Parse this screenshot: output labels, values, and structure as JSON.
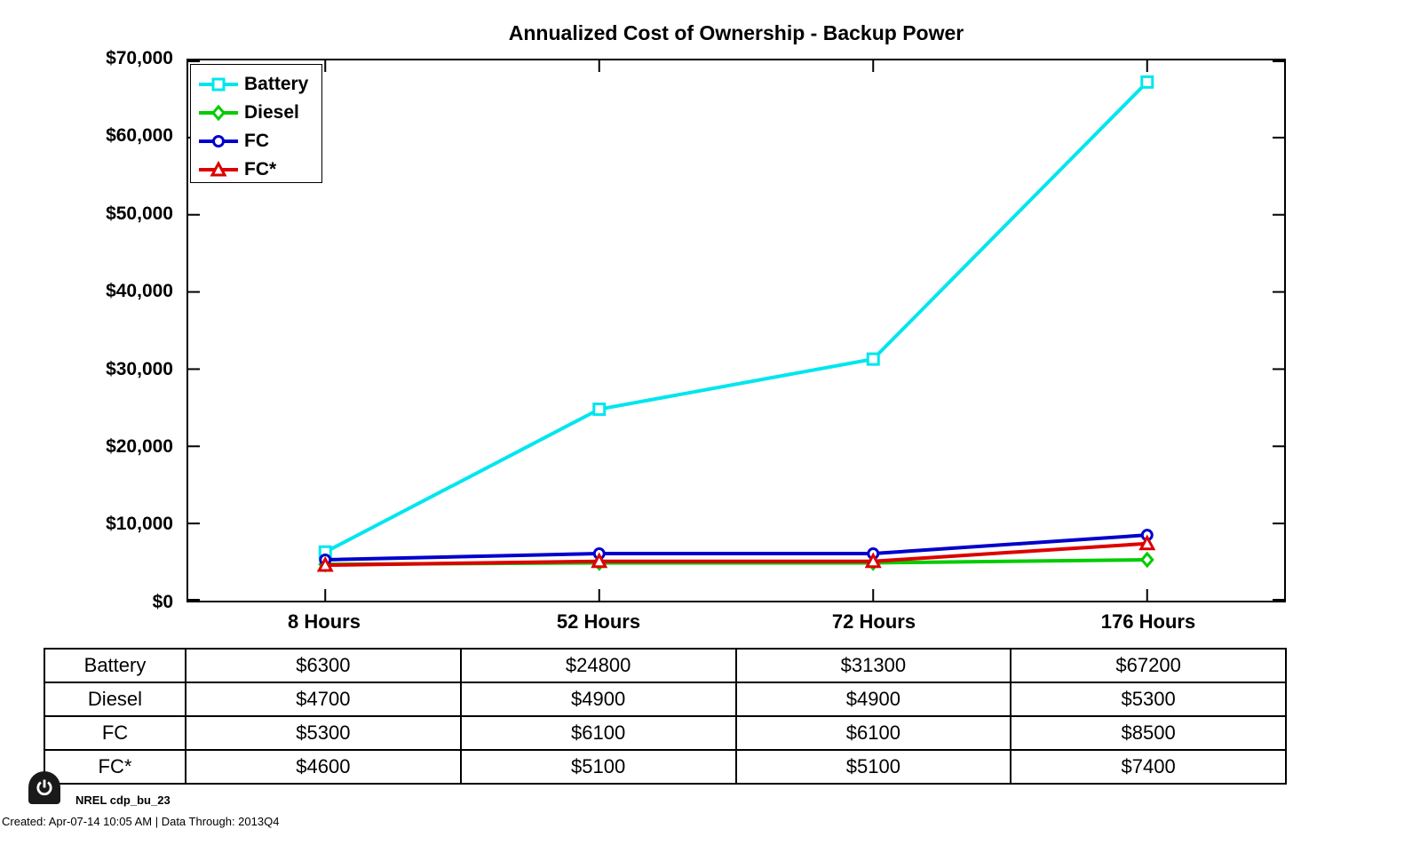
{
  "title": "Annualized Cost of Ownership - Backup Power",
  "chart_data": {
    "type": "line",
    "title": "Annualized Cost of Ownership - Backup Power",
    "categories": [
      "8 Hours",
      "52 Hours",
      "72 Hours",
      "176 Hours"
    ],
    "series": [
      {
        "name": "Battery",
        "color": "#00E6EE",
        "marker": "square",
        "values": [
          6300,
          24800,
          31300,
          67200
        ]
      },
      {
        "name": "Diesel",
        "color": "#00CC00",
        "marker": "diamond",
        "values": [
          4700,
          4900,
          4900,
          5300
        ]
      },
      {
        "name": "FC",
        "color": "#0000CC",
        "marker": "circle",
        "values": [
          5300,
          6100,
          6100,
          8500
        ]
      },
      {
        "name": "FC*",
        "color": "#DD0000",
        "marker": "triangle",
        "values": [
          4600,
          5100,
          5100,
          7400
        ]
      }
    ],
    "xlabel": "",
    "ylabel": "",
    "ylim": [
      0,
      70000
    ],
    "ytick_values": [
      0,
      10000,
      20000,
      30000,
      40000,
      50000,
      60000,
      70000
    ],
    "ytick_labels": [
      "$0",
      "$10,000",
      "$20,000",
      "$30,000",
      "$40,000",
      "$50,000",
      "$60,000",
      "$70,000"
    ],
    "grid": false,
    "legend_position": "top-left",
    "axis_color": "#000000",
    "line_width": 4
  },
  "legend": {
    "items": [
      {
        "label": "Battery"
      },
      {
        "label": "Diesel"
      },
      {
        "label": "FC"
      },
      {
        "label": "FC*"
      }
    ]
  },
  "table": {
    "rows": [
      {
        "label": "Battery",
        "values": [
          "$6300",
          "$24800",
          "$31300",
          "$67200"
        ]
      },
      {
        "label": "Diesel",
        "values": [
          "$4700",
          "$4900",
          "$4900",
          "$5300"
        ]
      },
      {
        "label": "FC",
        "values": [
          "$5300",
          "$6100",
          "$6100",
          "$8500"
        ]
      },
      {
        "label": "FC*",
        "values": [
          "$4600",
          "$5100",
          "$5100",
          "$7400"
        ]
      }
    ]
  },
  "footer": {
    "source_label": "NREL cdp_bu_23",
    "created_line": "Created: Apr-07-14 10:05 AM | Data Through: 2013Q4"
  }
}
